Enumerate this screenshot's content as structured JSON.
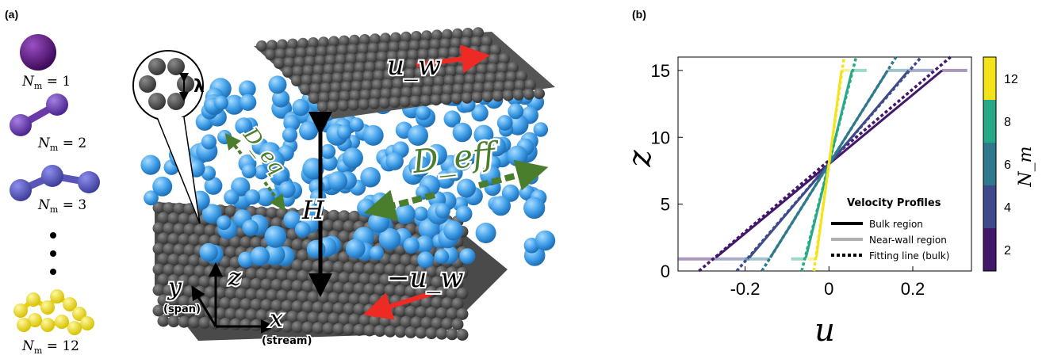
{
  "panel_a": {
    "label": "(a)",
    "monomers": [
      {
        "label": "N_m = 1",
        "count": 1,
        "color": "#5a0f7a"
      },
      {
        "label": "N_m = 2",
        "count": 2,
        "color": "#6a3aa8"
      },
      {
        "label": "N_m = 3",
        "count": 3,
        "color": "#5a55b8"
      },
      {
        "label": "N_m = 12",
        "count": 12,
        "color": "#f2e020"
      }
    ],
    "wall_top_velocity": "u_w",
    "wall_bottom_velocity": "−u_w",
    "gap_label": "H",
    "lambda_label": "λ",
    "d_eq_label": "D_eq",
    "d_eff_label": "D_eff",
    "axes": {
      "x": "x",
      "y": "y",
      "z": "z",
      "x_sub": "(stream)",
      "y_sub": "(span)"
    }
  },
  "panel_b": {
    "label": "(b)",
    "colorbar": {
      "label": "N_m",
      "ticks": [
        "2",
        "4",
        "6",
        "8",
        "12"
      ],
      "colors": [
        "#42186a",
        "#3f4a8a",
        "#2e7a8c",
        "#27a985",
        "#f5e31a"
      ]
    },
    "legend": {
      "title": "Velocity Profiles",
      "entries": [
        "Bulk region",
        "Near-wall region",
        "Fitting line (bulk)"
      ]
    }
  },
  "chart_data": {
    "type": "line",
    "xlabel": "u",
    "ylabel": "z",
    "xlim": [
      -0.36,
      0.34
    ],
    "ylim": [
      0,
      16
    ],
    "xticks": [
      "-0.2",
      "0",
      "0.2"
    ],
    "yticks": [
      "0",
      "5",
      "10",
      "15"
    ],
    "series": [
      {
        "N_m": 1,
        "color": "#42186a",
        "bulk": [
          [
            -0.27,
            1
          ],
          [
            0.27,
            15
          ]
        ],
        "near_wall": [
          [
            -0.36,
            0.9
          ],
          [
            -0.27,
            0.9
          ],
          [
            0.27,
            15
          ],
          [
            0.33,
            15
          ]
        ],
        "fit": [
          [
            -0.31,
            0
          ],
          [
            0.29,
            16
          ]
        ]
      },
      {
        "N_m": 2,
        "color": "#3f4a8a",
        "bulk": [
          [
            -0.19,
            1
          ],
          [
            0.19,
            15
          ]
        ],
        "near_wall": [
          [
            -0.27,
            0.9
          ],
          [
            -0.19,
            0.9
          ],
          [
            0.19,
            15
          ],
          [
            0.25,
            15
          ]
        ],
        "fit": [
          [
            -0.22,
            0
          ],
          [
            0.22,
            16
          ]
        ]
      },
      {
        "N_m": 3,
        "color": "#2e7a8c",
        "bulk": [
          [
            -0.14,
            1
          ],
          [
            0.14,
            15
          ]
        ],
        "near_wall": [
          [
            -0.2,
            0.9
          ],
          [
            -0.14,
            0.9
          ],
          [
            0.14,
            15
          ],
          [
            0.19,
            15
          ]
        ],
        "fit": [
          [
            -0.16,
            0
          ],
          [
            0.16,
            16
          ]
        ]
      },
      {
        "N_m": 8,
        "color": "#27a985",
        "bulk": [
          [
            -0.055,
            1
          ],
          [
            0.055,
            15
          ]
        ],
        "near_wall": [
          [
            -0.09,
            0.9
          ],
          [
            -0.055,
            0.9
          ],
          [
            0.055,
            15
          ],
          [
            0.09,
            15
          ]
        ],
        "fit": [
          [
            -0.065,
            0
          ],
          [
            0.065,
            16
          ]
        ]
      },
      {
        "N_m": 12,
        "color": "#f5e31a",
        "bulk": [
          [
            -0.03,
            1
          ],
          [
            0.03,
            15
          ]
        ],
        "near_wall": [
          [
            -0.05,
            0.9
          ],
          [
            -0.03,
            0.9
          ],
          [
            0.03,
            15
          ],
          [
            0.05,
            15
          ]
        ],
        "fit": [
          [
            -0.036,
            0
          ],
          [
            0.036,
            16
          ]
        ]
      }
    ]
  }
}
